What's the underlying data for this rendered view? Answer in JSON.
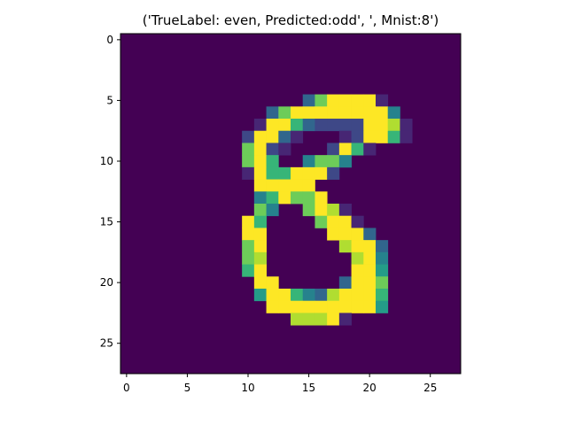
{
  "chart_data": {
    "type": "heatmap",
    "title": "('TrueLabel: even, Predicted:odd', ', Mnist:8')",
    "xlabel": "",
    "ylabel": "",
    "xlim": [
      -0.5,
      27.5
    ],
    "ylim": [
      27.5,
      -0.5
    ],
    "xticks": [
      0,
      5,
      10,
      15,
      20,
      25
    ],
    "yticks": [
      0,
      5,
      10,
      15,
      20,
      25
    ],
    "grid": false,
    "colormap": "viridis",
    "value_range": [
      0,
      1
    ],
    "background_color": "#440154",
    "rows": [
      "............................",
      "............................",
      "............................",
      "............................",
      "............................",
      "...............3799991......",
      "............37999999994.....",
      "...........1996322229981....",
      "..........29931...129961....",
      "..........7921...2961.......",
      "..........796..4774.........",
      "..........19669992..........",
      "...........99999............",
      "...........469779...........",
      "...........74..7981.........",
      "..........96....7991........",
      "..........99.....9993.......",
      "..........79......8993......",
      "..........78.......894......",
      "..........69.......995......",
      "...........99.....3997......",
      "...........59964389996......",
      "............9999999995......",
      "..............88891.........",
      "............................",
      "............................",
      "............................",
      "............................"
    ]
  }
}
